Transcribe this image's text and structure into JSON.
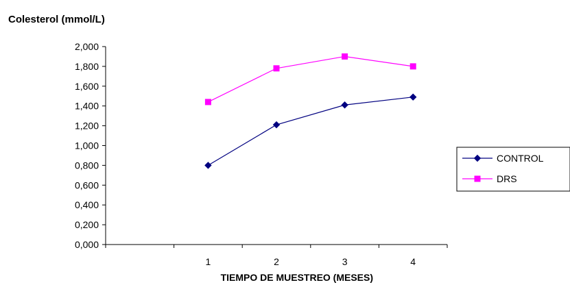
{
  "chart_data": {
    "type": "line",
    "title": "Colesterol (mmol/L)",
    "xlabel": "TIEMPO DE MUESTREO (MESES)",
    "ylabel": "",
    "categories": [
      "1",
      "2",
      "3",
      "4"
    ],
    "ylim": [
      0,
      2.0
    ],
    "y_ticks": [
      "0,000",
      "0,200",
      "0,400",
      "0,600",
      "0,800",
      "1,000",
      "1,200",
      "1,400",
      "1,600",
      "1,800",
      "2,000"
    ],
    "grid": false,
    "legend_position": "right",
    "series": [
      {
        "name": "CONTROL",
        "values": [
          0.8,
          1.21,
          1.41,
          1.49
        ],
        "color": "#000080",
        "marker": "diamond"
      },
      {
        "name": "DRS",
        "values": [
          1.44,
          1.78,
          1.9,
          1.8
        ],
        "color": "#FF00FF",
        "marker": "square"
      }
    ]
  }
}
